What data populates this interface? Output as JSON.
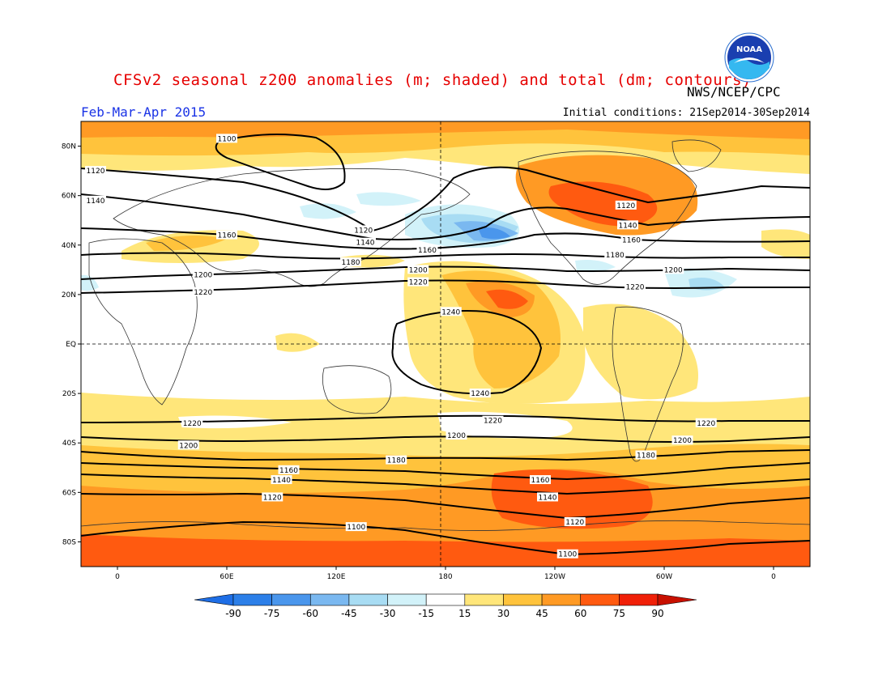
{
  "header": {
    "title": "CFSv2 seasonal z200 anomalies (m; shaded) and total (dm; contours)",
    "season": "Feb-Mar-Apr 2015",
    "initial_conditions": "Initial conditions: 21Sep2014-30Sep2014",
    "agency": "NWS/NCEP/CPC",
    "logo_text": "NOAA"
  },
  "colors": {
    "title": "#e60000",
    "season": "#1a33e6",
    "contour": "#000000",
    "land_outline": "#333333"
  },
  "map": {
    "lat_labels": [
      {
        "text": "80N",
        "lat": 80
      },
      {
        "text": "60N",
        "lat": 60
      },
      {
        "text": "40N",
        "lat": 40
      },
      {
        "text": "20N",
        "lat": 20
      },
      {
        "text": "EQ",
        "lat": 0
      },
      {
        "text": "20S",
        "lat": -20
      },
      {
        "text": "40S",
        "lat": -40
      },
      {
        "text": "60S",
        "lat": -60
      },
      {
        "text": "80S",
        "lat": -80
      }
    ],
    "lon_labels": [
      {
        "text": "0",
        "lon": 0
      },
      {
        "text": "60E",
        "lon": 60
      },
      {
        "text": "120E",
        "lon": 120
      },
      {
        "text": "180",
        "lon": 180
      },
      {
        "text": "120W",
        "lon": 240
      },
      {
        "text": "60W",
        "lon": 300
      },
      {
        "text": "0",
        "lon": 360
      }
    ],
    "lon_range": [
      -20,
      380
    ],
    "lat_range": [
      -90,
      90
    ],
    "contour_labels": [
      {
        "text": "1100",
        "lon": 60,
        "lat": 83
      },
      {
        "text": "1120",
        "lon": -12,
        "lat": 70
      },
      {
        "text": "1140",
        "lon": -12,
        "lat": 58
      },
      {
        "text": "1160",
        "lon": 60,
        "lat": 44
      },
      {
        "text": "1120",
        "lon": 135,
        "lat": 46
      },
      {
        "text": "1140",
        "lon": 136,
        "lat": 41
      },
      {
        "text": "1180",
        "lon": 128,
        "lat": 33
      },
      {
        "text": "1160",
        "lon": 170,
        "lat": 38
      },
      {
        "text": "1200",
        "lon": 165,
        "lat": 30
      },
      {
        "text": "1200",
        "lon": 47,
        "lat": 28
      },
      {
        "text": "1220",
        "lon": 47,
        "lat": 21
      },
      {
        "text": "1220",
        "lon": 165,
        "lat": 25
      },
      {
        "text": "1240",
        "lon": 183,
        "lat": 13
      },
      {
        "text": "1240",
        "lon": 199,
        "lat": -20
      },
      {
        "text": "1120",
        "lon": 279,
        "lat": 56
      },
      {
        "text": "1140",
        "lon": 280,
        "lat": 48
      },
      {
        "text": "1160",
        "lon": 282,
        "lat": 42
      },
      {
        "text": "1180",
        "lon": 273,
        "lat": 36
      },
      {
        "text": "1200",
        "lon": 305,
        "lat": 30
      },
      {
        "text": "1220",
        "lon": 284,
        "lat": 23
      },
      {
        "text": "1220",
        "lon": 41,
        "lat": -32
      },
      {
        "text": "1220",
        "lon": 206,
        "lat": -31
      },
      {
        "text": "1220",
        "lon": 323,
        "lat": -32
      },
      {
        "text": "1200",
        "lon": 39,
        "lat": -41
      },
      {
        "text": "1200",
        "lon": 186,
        "lat": -37
      },
      {
        "text": "1200",
        "lon": 310,
        "lat": -39
      },
      {
        "text": "1180",
        "lon": 153,
        "lat": -47
      },
      {
        "text": "1180",
        "lon": 290,
        "lat": -45
      },
      {
        "text": "1160",
        "lon": 94,
        "lat": -51
      },
      {
        "text": "1160",
        "lon": 232,
        "lat": -55
      },
      {
        "text": "1140",
        "lon": 90,
        "lat": -55
      },
      {
        "text": "1140",
        "lon": 236,
        "lat": -62
      },
      {
        "text": "1120",
        "lon": 85,
        "lat": -62
      },
      {
        "text": "1120",
        "lon": 251,
        "lat": -72
      },
      {
        "text": "1100",
        "lon": 131,
        "lat": -74
      },
      {
        "text": "1100",
        "lon": 247,
        "lat": -85
      }
    ]
  },
  "colorbar": {
    "levels": [
      "-90",
      "-75",
      "-60",
      "-45",
      "-30",
      "-15",
      "15",
      "30",
      "45",
      "60",
      "75",
      "90"
    ],
    "colors": [
      "#1e6ee6",
      "#2c7fe8",
      "#4a96ec",
      "#7ab8f0",
      "#a8dcf3",
      "#d2f2f9",
      "#ffffff",
      "#ffe67a",
      "#ffc33c",
      "#ff9a24",
      "#ff5a10",
      "#f02008",
      "#c81000"
    ]
  }
}
